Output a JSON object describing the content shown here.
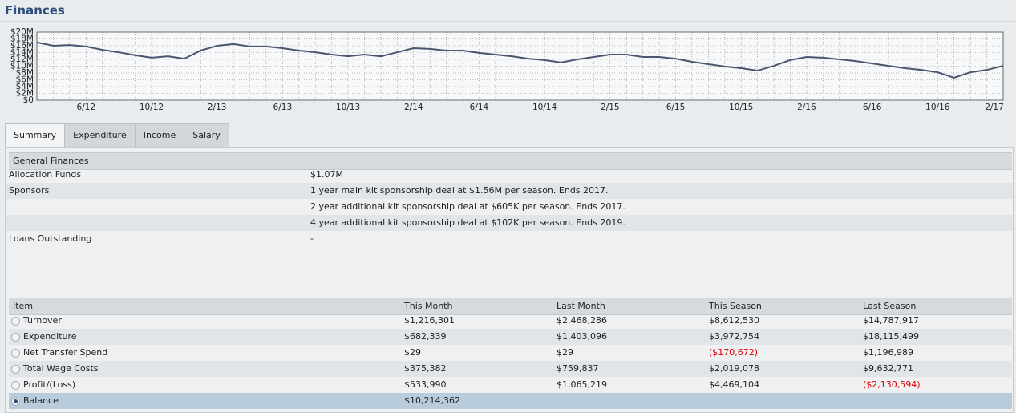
{
  "header": {
    "title": "Finances"
  },
  "chart_data": {
    "type": "line",
    "categories": [
      null,
      null,
      null,
      "6/12",
      null,
      null,
      null,
      "10/12",
      null,
      null,
      null,
      "2/13",
      null,
      null,
      null,
      "6/13",
      null,
      null,
      null,
      "10/13",
      null,
      null,
      null,
      "2/14",
      null,
      null,
      null,
      "6/14",
      null,
      null,
      null,
      "10/14",
      null,
      null,
      null,
      "2/15",
      null,
      null,
      null,
      "6/15",
      null,
      null,
      null,
      "10/15",
      null,
      null,
      null,
      "2/16",
      null,
      null,
      null,
      "6/16",
      null,
      null,
      null,
      "10/16",
      null,
      null,
      null,
      "2/17"
    ],
    "series": [
      {
        "color": "#4a5670",
        "values": [
          17,
          16,
          16.2,
          15.8,
          14.8,
          14.1,
          13.2,
          12.5,
          12.9,
          12.2,
          14.6,
          16,
          16.5,
          15.8,
          15.8,
          15.3,
          14.6,
          14.1,
          13.4,
          12.9,
          13.4,
          12.9,
          14.1,
          15.3,
          15.1,
          14.6,
          14.6,
          13.9,
          13.4,
          12.9,
          12.2,
          11.8,
          11.1,
          12,
          12.7,
          13.4,
          13.4,
          12.7,
          12.7,
          12.2,
          11.3,
          10.6,
          9.9,
          9.4,
          8.7,
          10.1,
          11.8,
          12.7,
          12.5,
          12,
          11.5,
          10.8,
          10.1,
          9.4,
          8.9,
          8.2,
          6.6,
          8.2,
          8.9,
          10.1
        ]
      }
    ],
    "ylim": [
      0,
      20
    ],
    "yticks": [
      {
        "value": 0,
        "label": "$0"
      },
      {
        "value": 2,
        "label": "$2M"
      },
      {
        "value": 4,
        "label": "$4M"
      },
      {
        "value": 6,
        "label": "$6M"
      },
      {
        "value": 8,
        "label": "$8M"
      },
      {
        "value": 10,
        "label": "$10M"
      },
      {
        "value": 12,
        "label": "$12M"
      },
      {
        "value": 14,
        "label": "$14M"
      },
      {
        "value": 16,
        "label": "$16M"
      },
      {
        "value": 18,
        "label": "$18M"
      },
      {
        "value": 20,
        "label": "$20M"
      }
    ],
    "grid": true
  },
  "tabs": [
    "Summary",
    "Expenditure",
    "Income",
    "Salary"
  ],
  "general": {
    "title": "General Finances",
    "rows": [
      [
        "Allocation Funds",
        "$1.07M"
      ],
      [
        "Sponsors",
        "1 year main kit sponsorship deal at $1.56M per season. Ends 2017."
      ],
      [
        null,
        "2 year additional kit sponsorship deal at $605K per season. Ends 2017."
      ],
      [
        null,
        "4 year additional kit sponsorship deal at $102K per season. Ends 2019."
      ],
      [
        "Loans Outstanding",
        "-"
      ]
    ]
  },
  "items": {
    "columns": [
      "Item",
      "This Month",
      "Last Month",
      "This Season",
      "Last Season"
    ],
    "rows": [
      [
        "Turnover",
        "$1,216,301",
        "$2,468,286",
        "$8,612,530",
        "$14,787,917"
      ],
      [
        "Expenditure",
        "$682,339",
        "$1,403,096",
        "$3,972,754",
        "$18,115,499"
      ],
      [
        "Net Transfer Spend",
        "$29",
        "$29",
        "($170,672)",
        "$1,196,989"
      ],
      [
        "Total Wage Costs",
        "$375,382",
        "$759,837",
        "$2,019,078",
        "$9,632,771"
      ],
      [
        "Profit/(Loss)",
        "$533,990",
        "$1,065,219",
        "$4,469,104",
        "($2,130,594)"
      ],
      [
        "Balance",
        "$10,214,362",
        null,
        null,
        null
      ]
    ]
  }
}
